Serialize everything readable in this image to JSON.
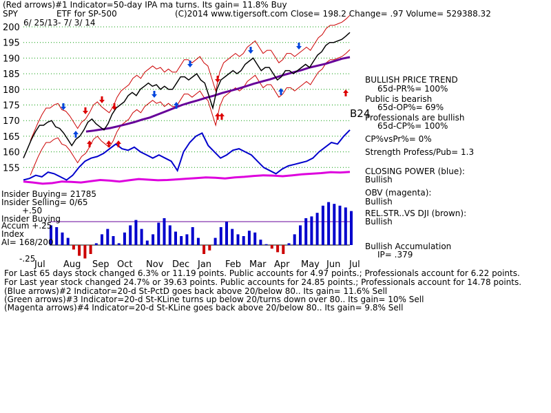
{
  "header": {
    "line1": "(Red arrows)#1 Indicator=50-day IPA ma turns. Its gain= 11.8% Buy",
    "ticker": "SPY",
    "description": "ETF for SP-500",
    "copyright": "(C)2014 www.tigersoft.com",
    "quote": "Close=  198.2  Change= .97 Volume= 529388.32",
    "date_range": "6/ 25/13- 7/ 3/ 14"
  },
  "right_panel": {
    "trend_title": "BULLISH PRICE TREND",
    "pr_pct": "65d-PR%= 100%",
    "public_label": "Public is bearish",
    "op_pct": "65d-OP%= 69%",
    "b24": "B24",
    "pros_label": "Professionals are bullish",
    "cp_pct": "65d-CP%= 100%",
    "cp_vs_pr": "CP%vsPr%=  0%",
    "strength": "Strength Profess/Pub= 1.3",
    "closing_power_label": "CLOSING POWER (blue):",
    "closing_power_value": "Bullish",
    "obv_label": "OBV (magenta):",
    "obv_value": "Bullish",
    "relstr_label": "REL.STR..VS DJI (brown):",
    "relstr_value": "Bullish",
    "accum_label": "Bullish Accumulation",
    "ip": "IP=  .379"
  },
  "left_labels": {
    "insider_buying": "Insider Buying= 21785",
    "insider_selling": "Insider Selling= 0/65",
    "plus50": "+.50",
    "insider_buying2": "Insider Buying",
    "accum": "Accum  +.25",
    "index": "Index",
    "ai": "AI= 168/200",
    "minus25": "-.25"
  },
  "footer": {
    "line1": "For Last 65 days stock changed  6.3% or 11.19 points.  Public accounts for  4.97 points.;  Professionals account for  6.22 points.",
    "line2": "For Last year stock changed  24.7% or  39.63 points.  Public accounts for  24.85 points.;  Professionals account for  14.78 points.",
    "line3": "(Blue arrows)#2 Indicator=20-d St-PctD goes back above 20/below 80.. Its gain= 11.6% Sell",
    "line4": "(Green arrows)#3 Indicator=20-d St-KLine turns up below 20/turns down over 80.. Its gain= 10% Sell",
    "line5": "(Magenta arrows)#4 Indicator=20-d St-KLine goes back above 20/below 80.. Its gain= 9.8% Sell"
  },
  "colors": {
    "price": "#000000",
    "band": "#cc0000",
    "ma": "#660099",
    "closing_power": "#0000cc",
    "obv": "#dd00dd",
    "accum_pos": "#0000cc",
    "accum_neg": "#cc0000",
    "arrow_red": "#dd0000",
    "arrow_blue": "#0044dd",
    "grid": "#009900"
  },
  "chart_data": {
    "type": "line",
    "ylim": [
      150,
      200
    ],
    "y_ticks": [
      155,
      160,
      165,
      170,
      175,
      180,
      185,
      190,
      195,
      200
    ],
    "x_ticks": [
      "Jul",
      "Aug",
      "Sep",
      "Oct",
      "Nov",
      "Dec",
      "Jan",
      "Feb",
      "Mar",
      "Apr",
      "May",
      "Jun",
      "Jul"
    ],
    "series": [
      {
        "key": "price",
        "values": [
          158,
          161,
          164,
          166.5,
          168.5,
          168.5,
          169.5,
          170,
          168,
          167.5,
          166,
          164,
          162,
          164,
          165,
          167,
          169.5,
          170.5,
          169,
          168,
          167,
          169,
          172,
          174,
          175,
          176,
          178,
          179,
          178,
          180,
          181,
          182,
          181,
          181.5,
          180,
          181,
          180,
          180,
          182,
          184,
          184,
          183,
          184,
          185,
          183,
          182,
          178,
          174,
          180,
          183,
          184,
          185,
          186,
          185,
          186,
          188,
          189,
          190,
          188,
          186,
          187,
          187,
          185,
          183,
          184,
          186,
          186,
          185,
          186,
          187,
          188,
          187,
          189,
          191,
          192,
          194,
          195,
          195,
          195.5,
          196,
          197,
          198.2
        ]
      },
      {
        "key": "ma",
        "values": [
          166.5,
          166.8,
          167.2,
          167.6,
          168.2,
          168.8,
          169.5,
          170.3,
          171,
          172,
          173,
          174,
          175,
          175.8,
          176.5,
          177.3,
          178,
          178.8,
          179.5,
          180.2,
          181,
          181.8,
          182.5,
          183.2,
          184,
          184.8,
          185.5,
          186.2,
          187,
          187.6,
          188.2,
          189,
          189.8,
          190.3
        ]
      },
      {
        "key": "closing_power",
        "values": [
          151,
          151.5,
          152.5,
          152,
          153.5,
          153,
          152,
          151,
          152.5,
          155,
          157,
          158,
          158.5,
          159.5,
          161,
          162.5,
          161,
          160.5,
          161.5,
          160,
          159,
          158,
          159,
          158,
          157,
          154,
          160,
          163,
          165,
          166,
          162,
          160,
          158,
          159,
          160.5,
          161,
          160,
          159,
          157,
          155,
          154,
          153,
          154.5,
          155.5,
          156,
          156.5,
          157,
          158,
          160,
          161.5,
          163,
          162.5,
          165,
          167
        ]
      },
      {
        "key": "obv",
        "values": [
          150.5,
          150.2,
          149.8,
          150,
          150.5,
          150.4,
          150.2,
          150.6,
          151,
          150.8,
          150.5,
          150.9,
          151.3,
          151.1,
          150.9,
          151,
          151.2,
          151.4,
          151.6,
          151.8,
          151.7,
          151.5,
          151.8,
          152,
          152.3,
          152.5,
          152.4,
          152.2,
          152.5,
          152.8,
          153,
          153.2,
          153.5,
          153.4,
          153.6
        ]
      },
      {
        "key": "accumulation",
        "values": [
          0.22,
          0.2,
          0.14,
          0.08,
          -0.05,
          -0.12,
          -0.15,
          -0.1,
          0.02,
          0.12,
          0.18,
          0.1,
          0.02,
          0.14,
          0.22,
          0.28,
          0.18,
          0.05,
          0.12,
          0.25,
          0.3,
          0.22,
          0.15,
          0.1,
          0.12,
          0.2,
          0.08,
          -0.1,
          -0.06,
          0.08,
          0.2,
          0.26,
          0.18,
          0.12,
          0.1,
          0.16,
          0.14,
          0.06,
          0.01,
          -0.04,
          -0.08,
          -0.1,
          0.02,
          0.12,
          0.22,
          0.3,
          0.32,
          0.36,
          0.44,
          0.48,
          0.46,
          0.44,
          0.42,
          0.38
        ]
      }
    ]
  }
}
